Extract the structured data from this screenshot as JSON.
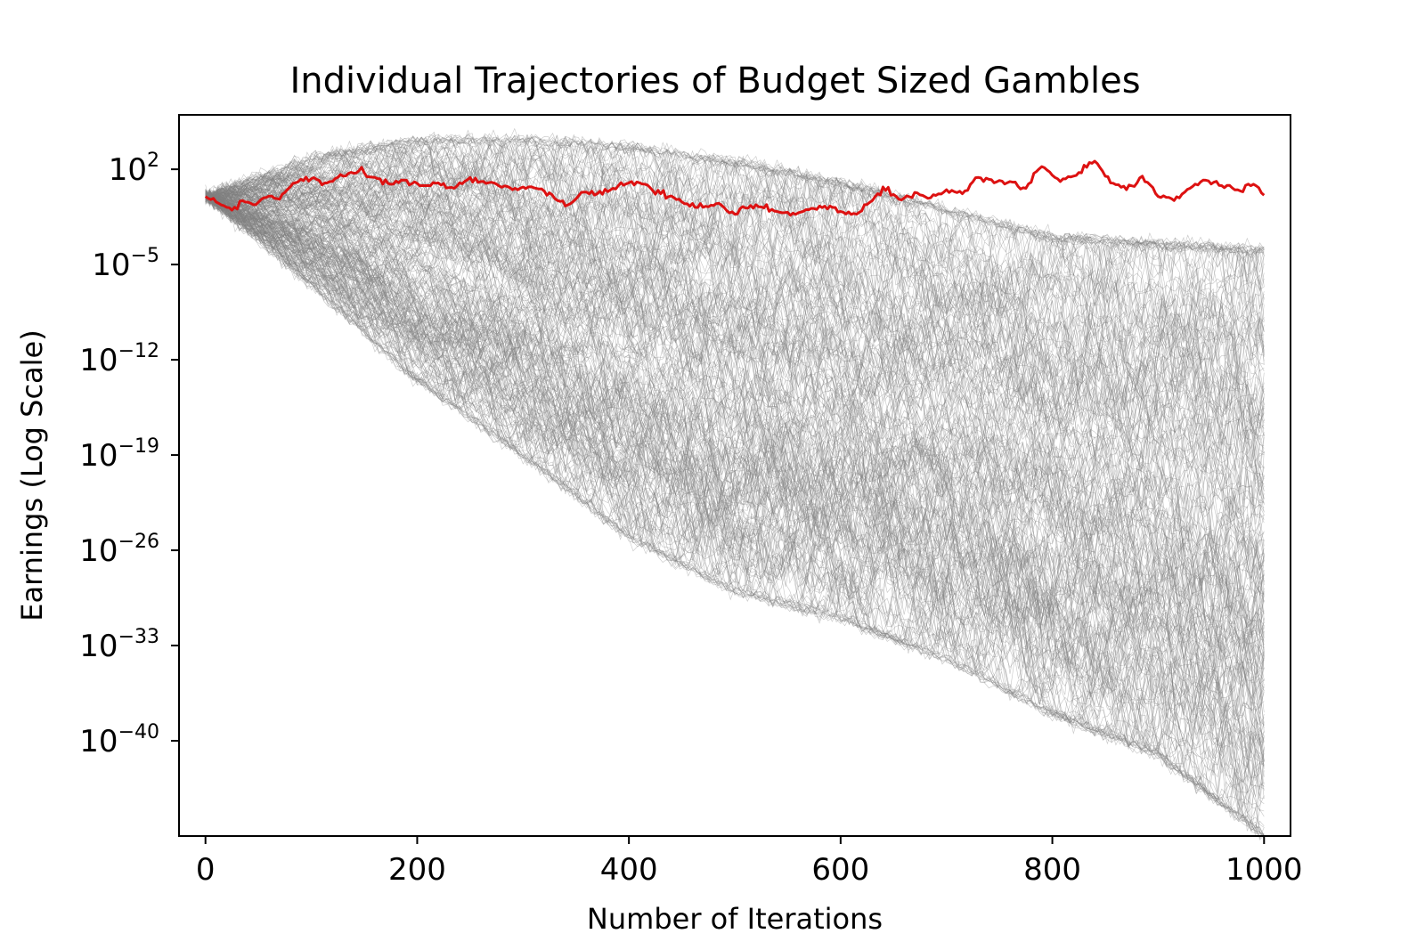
{
  "chart_data": {
    "type": "line",
    "title": "Individual Trajectories of Budget Sized Gambles",
    "xlabel": "Number of Iterations",
    "ylabel": "Earnings (Log Scale)",
    "xlim": [
      -25,
      1025
    ],
    "ylim_log10_exponent": [
      -47,
      6
    ],
    "y_scale": "log",
    "x_ticks": [
      {
        "value": 0,
        "label": "0"
      },
      {
        "value": 200,
        "label": "200"
      },
      {
        "value": 400,
        "label": "400"
      },
      {
        "value": 600,
        "label": "600"
      },
      {
        "value": 800,
        "label": "800"
      },
      {
        "value": 1000,
        "label": "1000"
      }
    ],
    "y_ticks": [
      {
        "exponent": 2,
        "base": "10",
        "sup": "2"
      },
      {
        "exponent": -5,
        "base": "10",
        "sup": "−5"
      },
      {
        "exponent": -12,
        "base": "10",
        "sup": "−12"
      },
      {
        "exponent": -19,
        "base": "10",
        "sup": "−19"
      },
      {
        "exponent": -26,
        "base": "10",
        "sup": "−26"
      },
      {
        "exponent": -33,
        "base": "10",
        "sup": "−33"
      },
      {
        "exponent": -40,
        "base": "10",
        "sup": "−40"
      }
    ],
    "grid": false,
    "series": [
      {
        "role": "individual trajectories (many)",
        "color": "#808080",
        "envelope_log10": {
          "x": [
            0,
            100,
            200,
            300,
            400,
            500,
            600,
            700,
            800,
            900,
            1000
          ],
          "upper": [
            0,
            2.8,
            4.1,
            4.2,
            3.6,
            2.5,
            1.0,
            -1.0,
            -3.0,
            -3.5,
            -4.0
          ],
          "lower": [
            0,
            -6.5,
            -13.5,
            -19,
            -25,
            -29,
            -31,
            -34,
            -38,
            -41,
            -47
          ]
        }
      },
      {
        "role": "highlighted trajectory",
        "color": "#dd1111",
        "x": [
          0,
          10,
          20,
          25,
          35,
          45,
          55,
          70,
          85,
          100,
          115,
          130,
          145,
          160,
          175,
          190,
          205,
          220,
          235,
          250,
          260,
          275,
          290,
          305,
          320,
          340,
          355,
          370,
          385,
          400,
          415,
          430,
          450,
          470,
          485,
          500,
          520,
          540,
          560,
          580,
          600,
          615,
          630,
          640,
          655,
          670,
          685,
          700,
          715,
          730,
          745,
          760,
          775,
          790,
          805,
          820,
          840,
          855,
          870,
          885,
          900,
          915,
          930,
          945,
          960,
          975,
          990,
          1000
        ],
        "y_log10": [
          0,
          -0.4,
          -0.8,
          -1.0,
          -0.3,
          -0.6,
          -0.1,
          -0.2,
          1.0,
          1.3,
          1.0,
          1.5,
          1.9,
          1.4,
          0.9,
          1.2,
          0.8,
          1.0,
          0.6,
          1.4,
          1.1,
          0.9,
          0.5,
          0.7,
          0.4,
          -0.7,
          0.3,
          0.2,
          0.6,
          1.0,
          0.9,
          0.2,
          -0.4,
          -0.8,
          -0.5,
          -1.3,
          -0.6,
          -1.1,
          -1.2,
          -0.7,
          -1.1,
          -1.3,
          -0.3,
          0.7,
          -0.2,
          0.3,
          -0.1,
          0.5,
          0.2,
          1.4,
          1.0,
          1.1,
          0.6,
          2.2,
          1.3,
          1.5,
          2.6,
          1.0,
          0.5,
          1.5,
          0.0,
          -0.3,
          0.6,
          1.2,
          0.8,
          0.5,
          0.9,
          0.1
        ]
      }
    ]
  }
}
